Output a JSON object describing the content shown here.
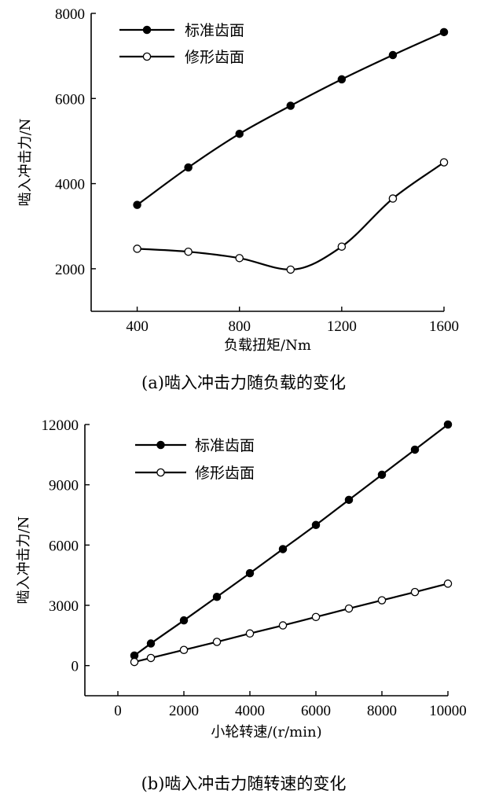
{
  "chart_data": [
    {
      "type": "line",
      "caption": "(a)啮入冲击力随负载的变化",
      "xlabel": "负载扭矩/Nm",
      "ylabel": "啮入冲击力/N",
      "xlim": [
        220,
        1600
      ],
      "ylim": [
        1000,
        8000
      ],
      "xticks": [
        400,
        800,
        1200,
        1600
      ],
      "xtick_labels": [
        "400",
        "800",
        "1200",
        "1600"
      ],
      "yticks": [
        2000,
        4000,
        6000,
        8000
      ],
      "ytick_labels": [
        "2000",
        "4000",
        "6000",
        "8000"
      ],
      "legend_position": "top-left",
      "series": [
        {
          "name": "标准齿面",
          "marker": "filled-circle",
          "x": [
            400,
            600,
            800,
            1000,
            1200,
            1400,
            1600
          ],
          "y": [
            3500,
            4380,
            5170,
            5830,
            6450,
            7020,
            7560
          ]
        },
        {
          "name": "修形齿面",
          "marker": "open-circle",
          "x": [
            400,
            600,
            800,
            1000,
            1200,
            1400,
            1600
          ],
          "y": [
            2470,
            2400,
            2250,
            1980,
            2520,
            3650,
            4500
          ]
        }
      ]
    },
    {
      "type": "line",
      "caption": "(b)啮入冲击力随转速的变化",
      "xlabel": "小轮转速/(r/min)",
      "ylabel": "啮入冲击力/N",
      "xlim": [
        -1000,
        10000
      ],
      "ylim": [
        -1500,
        12000
      ],
      "xticks": [
        0,
        2000,
        4000,
        6000,
        8000,
        10000
      ],
      "xtick_labels": [
        "0",
        "2000",
        "4000",
        "6000",
        "8000",
        "10000"
      ],
      "yticks": [
        0,
        3000,
        6000,
        9000,
        12000
      ],
      "ytick_labels": [
        "0",
        "3000",
        "6000",
        "9000",
        "12000"
      ],
      "legend_position": "top-left",
      "series": [
        {
          "name": "标准齿面",
          "marker": "filled-circle",
          "x": [
            500,
            1000,
            2000,
            3000,
            4000,
            5000,
            6000,
            7000,
            8000,
            9000,
            10000
          ],
          "y": [
            500,
            1100,
            2250,
            3420,
            4600,
            5800,
            7000,
            8250,
            9500,
            10750,
            12000
          ]
        },
        {
          "name": "修形齿面",
          "marker": "open-circle",
          "x": [
            500,
            1000,
            2000,
            3000,
            4000,
            5000,
            6000,
            7000,
            8000,
            9000,
            10000
          ],
          "y": [
            180,
            380,
            780,
            1180,
            1600,
            2000,
            2420,
            2840,
            3250,
            3660,
            4080
          ]
        }
      ]
    }
  ]
}
